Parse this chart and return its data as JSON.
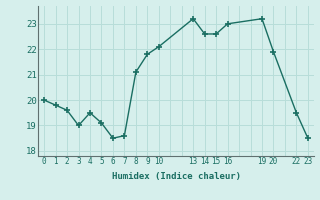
{
  "x": [
    0,
    1,
    2,
    3,
    4,
    5,
    6,
    7,
    8,
    9,
    10,
    13,
    14,
    15,
    16,
    19,
    20,
    22,
    23
  ],
  "y": [
    20.0,
    19.8,
    19.6,
    19.0,
    19.5,
    19.1,
    18.5,
    18.6,
    21.1,
    21.8,
    22.1,
    23.2,
    22.6,
    22.6,
    23.0,
    23.2,
    21.9,
    19.5,
    18.5
  ],
  "xticks": [
    0,
    1,
    2,
    3,
    4,
    5,
    6,
    7,
    8,
    9,
    10,
    13,
    14,
    15,
    16,
    19,
    20,
    22,
    23
  ],
  "xtick_labels": [
    "0",
    "1",
    "2",
    "3",
    "4",
    "5",
    "6",
    "7",
    "8",
    "9",
    "10",
    "13",
    "14",
    "15",
    "16",
    "19",
    "20",
    "22",
    "23"
  ],
  "yticks": [
    18,
    19,
    20,
    21,
    22,
    23
  ],
  "ylim": [
    17.8,
    23.7
  ],
  "xlim": [
    -0.5,
    23.5
  ],
  "xlabel": "Humidex (Indice chaleur)",
  "line_color": "#1a6e62",
  "bg_color": "#d6efec",
  "grid_color": "#b8ddd9",
  "marker": "+",
  "marker_size": 5,
  "linewidth": 1.0
}
